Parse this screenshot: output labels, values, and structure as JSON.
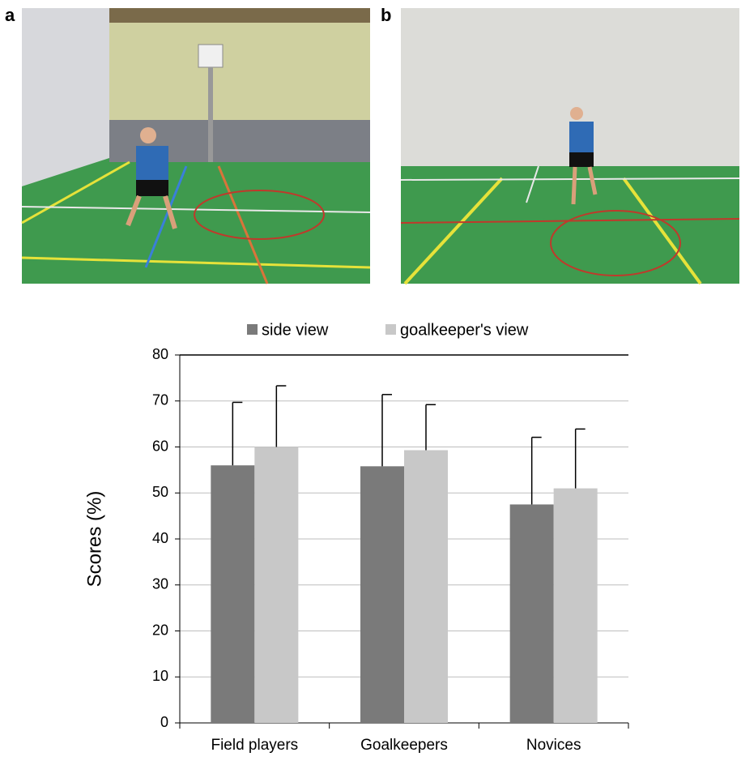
{
  "panel_labels": [
    "a",
    "b"
  ],
  "chart_data": {
    "type": "bar",
    "y_label": "Scores (%)",
    "categories": [
      "Field players",
      "Goalkeepers",
      "Novices"
    ],
    "series": [
      {
        "name": "side view",
        "color": "#7a7a7a",
        "values": [
          56,
          55.8,
          47.5
        ],
        "errors": [
          13.7,
          15.6,
          14.6
        ]
      },
      {
        "name": "goalkeeper's view",
        "color": "#c8c8c8",
        "values": [
          60,
          59.3,
          51
        ],
        "errors": [
          13.3,
          9.9,
          12.9
        ]
      }
    ],
    "ylim": [
      0,
      80
    ],
    "yticks": [
      0,
      10,
      20,
      30,
      40,
      50,
      60,
      70,
      80
    ],
    "grid": true,
    "legend": "top"
  }
}
